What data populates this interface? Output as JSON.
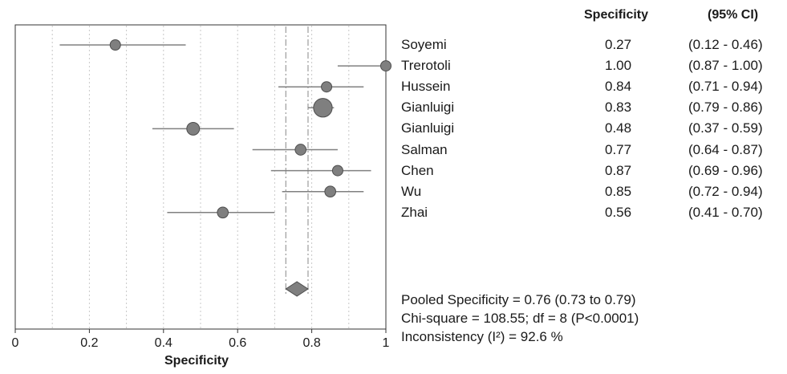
{
  "chart_data": {
    "type": "forest",
    "xlabel": "Specificity",
    "xlim": [
      0,
      1
    ],
    "xticks": [
      "0",
      "0.2",
      "0.4",
      "0.6",
      "0.8",
      "1"
    ],
    "grid_x": [
      0.1,
      0.2,
      0.3,
      0.4,
      0.5,
      0.6,
      0.7,
      0.8,
      0.9
    ],
    "columns": {
      "estimate": "Specificity",
      "ci": "(95% CI)"
    },
    "studies": [
      {
        "name": "Soyemi",
        "estimate": 0.27,
        "lower": 0.12,
        "upper": 0.46,
        "weight": 1.0,
        "estimate_text": "0.27",
        "ci_text": "(0.12 - 0.46)"
      },
      {
        "name": "Trerotoli",
        "estimate": 1.0,
        "lower": 0.87,
        "upper": 1.0,
        "weight": 1.0,
        "estimate_text": "1.00",
        "ci_text": "(0.87 - 1.00)"
      },
      {
        "name": "Hussein",
        "estimate": 0.84,
        "lower": 0.71,
        "upper": 0.94,
        "weight": 1.0,
        "estimate_text": "0.84",
        "ci_text": "(0.71 - 0.94)"
      },
      {
        "name": "Gianluigi",
        "estimate": 0.83,
        "lower": 0.79,
        "upper": 0.86,
        "weight": 3.2,
        "estimate_text": "0.83",
        "ci_text": "(0.79 - 0.86)"
      },
      {
        "name": "Gianluigi",
        "estimate": 0.48,
        "lower": 0.37,
        "upper": 0.59,
        "weight": 1.5,
        "estimate_text": "0.48",
        "ci_text": "(0.37 - 0.59)"
      },
      {
        "name": "Salman",
        "estimate": 0.77,
        "lower": 0.64,
        "upper": 0.87,
        "weight": 1.1,
        "estimate_text": "0.77",
        "ci_text": "(0.64 - 0.87)"
      },
      {
        "name": "Chen",
        "estimate": 0.87,
        "lower": 0.69,
        "upper": 0.96,
        "weight": 1.0,
        "estimate_text": "0.87",
        "ci_text": "(0.69 - 0.96)"
      },
      {
        "name": "Wu",
        "estimate": 0.85,
        "lower": 0.72,
        "upper": 0.94,
        "weight": 1.1,
        "estimate_text": "0.85",
        "ci_text": "(0.72 - 0.94)"
      },
      {
        "name": "Zhai",
        "estimate": 0.56,
        "lower": 0.41,
        "upper": 0.7,
        "weight": 1.1,
        "estimate_text": "0.56",
        "ci_text": "(0.41 - 0.70)"
      }
    ],
    "pooled": {
      "estimate": 0.76,
      "lower": 0.73,
      "upper": 0.79
    },
    "summary_lines": [
      "Pooled Specificity = 0.76 (0.73 to 0.79)",
      "Chi-square = 108.55; df =  8 (P<0.0001)",
      "Inconsistency (I²) = 92.6 %"
    ],
    "colors": {
      "marker": "#7f7f7f",
      "marker_edge": "#4d4d4d",
      "line": "#808080",
      "grid": "#c8c8c8"
    }
  }
}
